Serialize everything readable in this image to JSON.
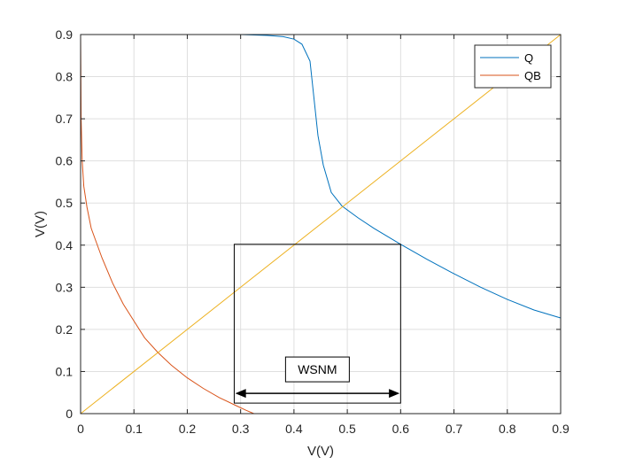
{
  "chart_data": {
    "type": "line",
    "xlabel": "V(V)",
    "ylabel": "V(V)",
    "xlim": [
      0,
      0.9
    ],
    "ylim": [
      0,
      0.9
    ],
    "xticks": [
      "0",
      "0.1",
      "0.2",
      "0.3",
      "0.4",
      "0.5",
      "0.6",
      "0.7",
      "0.8",
      "0.9"
    ],
    "yticks": [
      "0",
      "0.1",
      "0.2",
      "0.3",
      "0.4",
      "0.5",
      "0.6",
      "0.7",
      "0.8",
      "0.9"
    ],
    "grid": true,
    "legend": {
      "placement": "top-right"
    },
    "series": [
      {
        "name": "Q",
        "color": "#0072BD",
        "x": [
          0,
          0.05,
          0.1,
          0.15,
          0.2,
          0.25,
          0.3,
          0.35,
          0.38,
          0.4,
          0.415,
          0.43,
          0.445,
          0.455,
          0.47,
          0.49,
          0.52,
          0.55,
          0.6,
          0.65,
          0.7,
          0.75,
          0.8,
          0.85,
          0.9
        ],
        "y": [
          0.9,
          0.9,
          0.9,
          0.9,
          0.9,
          0.9,
          0.9,
          0.898,
          0.895,
          0.889,
          0.877,
          0.837,
          0.66,
          0.59,
          0.525,
          0.493,
          0.465,
          0.44,
          0.402,
          0.366,
          0.332,
          0.3,
          0.271,
          0.246,
          0.227
        ]
      },
      {
        "name": "QB",
        "color": "#D95319",
        "x": [
          0,
          0.001,
          0.003,
          0.006,
          0.012,
          0.02,
          0.04,
          0.06,
          0.08,
          0.1,
          0.12,
          0.145,
          0.17,
          0.2,
          0.23,
          0.26,
          0.29,
          0.31,
          0.325
        ],
        "y": [
          0.9,
          0.7,
          0.6,
          0.54,
          0.49,
          0.44,
          0.37,
          0.31,
          0.26,
          0.22,
          0.18,
          0.145,
          0.115,
          0.085,
          0.06,
          0.038,
          0.02,
          0.008,
          0
        ]
      },
      {
        "name": "",
        "color": "#EDB120",
        "x": [
          0,
          0.9
        ],
        "y": [
          0,
          0.9
        ]
      }
    ],
    "annotations": [
      {
        "type": "rectangle",
        "x0": 0.288,
        "y0": 0.025,
        "x1": 0.6,
        "y1": 0.402
      },
      {
        "type": "double-arrow",
        "text": "WSNM",
        "x0": 0.29,
        "x1": 0.598,
        "y": 0.048,
        "label_y": 0.105
      }
    ]
  }
}
